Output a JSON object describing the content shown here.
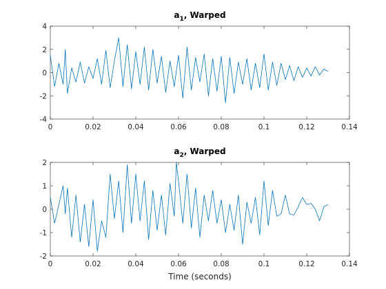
{
  "chart_data": [
    {
      "type": "line",
      "title_main": "a",
      "title_sub": "1",
      "title_rest": ", Warped",
      "xlabel": "",
      "ylabel": "",
      "xlim": [
        0,
        0.14
      ],
      "ylim": [
        -4,
        4
      ],
      "xticks": [
        0,
        0.02,
        0.04,
        0.06,
        0.08,
        0.1,
        0.12,
        0.14
      ],
      "xtick_labels": [
        "0",
        "0.02",
        "0.04",
        "0.06",
        "0.08",
        "0.1",
        "0.12",
        "0.14"
      ],
      "yticks": [
        -4,
        -2,
        0,
        2,
        4
      ],
      "ytick_labels": [
        "-4",
        "-2",
        "0",
        "2",
        "4"
      ],
      "grid": false,
      "series": [
        {
          "color": "#0072BD",
          "x": [
            0,
            0.002,
            0.004,
            0.006,
            0.007,
            0.008,
            0.01,
            0.012,
            0.014,
            0.016,
            0.018,
            0.02,
            0.022,
            0.024,
            0.026,
            0.028,
            0.03,
            0.032,
            0.034,
            0.036,
            0.038,
            0.04,
            0.042,
            0.044,
            0.046,
            0.048,
            0.05,
            0.052,
            0.054,
            0.056,
            0.058,
            0.06,
            0.062,
            0.064,
            0.066,
            0.068,
            0.07,
            0.072,
            0.074,
            0.076,
            0.078,
            0.08,
            0.082,
            0.084,
            0.086,
            0.088,
            0.09,
            0.092,
            0.094,
            0.096,
            0.098,
            0.1,
            0.102,
            0.104,
            0.106,
            0.108,
            0.11,
            0.112,
            0.114,
            0.116,
            0.118,
            0.12,
            0.122,
            0.124,
            0.126,
            0.128,
            0.13
          ],
          "y": [
            1.5,
            -1.2,
            0.8,
            -1.0,
            2.0,
            -1.8,
            0.4,
            -0.8,
            0.9,
            -0.9,
            0.5,
            -0.5,
            1.2,
            -1.0,
            1.9,
            -1.3,
            1.0,
            3.0,
            -1.2,
            2.4,
            -1.4,
            1.8,
            -1.0,
            2.2,
            -1.5,
            2.0,
            -0.9,
            1.4,
            -1.7,
            1.0,
            -1.2,
            1.5,
            -2.2,
            2.2,
            -1.5,
            1.3,
            -0.8,
            1.6,
            -2.0,
            1.2,
            -1.6,
            1.4,
            -2.6,
            1.3,
            -1.8,
            0.9,
            -1.0,
            1.2,
            -1.5,
            0.8,
            -1.3,
            1.6,
            -1.5,
            0.9,
            -1.1,
            0.8,
            -0.6,
            0.6,
            -0.7,
            0.5,
            -0.4,
            0.4,
            -0.3,
            0.5,
            -0.2,
            0.3,
            0.1
          ]
        }
      ]
    },
    {
      "type": "line",
      "title_main": "a",
      "title_sub": "2",
      "title_rest": ", Warped",
      "xlabel": "Time (seconds)",
      "ylabel": "",
      "xlim": [
        0,
        0.14
      ],
      "ylim": [
        -2,
        2
      ],
      "xticks": [
        0,
        0.02,
        0.04,
        0.06,
        0.08,
        0.1,
        0.12,
        0.14
      ],
      "xtick_labels": [
        "0",
        "0.02",
        "0.04",
        "0.06",
        "0.08",
        "0.1",
        "0.12",
        "0.14"
      ],
      "yticks": [
        -2,
        -1,
        0,
        1,
        2
      ],
      "ytick_labels": [
        "-2",
        "-1",
        "0",
        "1",
        "2"
      ],
      "grid": false,
      "series": [
        {
          "color": "#0072BD",
          "x": [
            0,
            0.002,
            0.004,
            0.006,
            0.007,
            0.008,
            0.01,
            0.012,
            0.014,
            0.016,
            0.018,
            0.02,
            0.022,
            0.024,
            0.026,
            0.028,
            0.03,
            0.032,
            0.034,
            0.036,
            0.038,
            0.04,
            0.042,
            0.044,
            0.046,
            0.048,
            0.05,
            0.052,
            0.054,
            0.056,
            0.058,
            0.059,
            0.06,
            0.062,
            0.064,
            0.066,
            0.068,
            0.07,
            0.072,
            0.074,
            0.076,
            0.078,
            0.08,
            0.082,
            0.084,
            0.086,
            0.088,
            0.09,
            0.092,
            0.094,
            0.096,
            0.098,
            0.1,
            0.102,
            0.104,
            0.106,
            0.108,
            0.11,
            0.112,
            0.114,
            0.116,
            0.118,
            0.12,
            0.122,
            0.124,
            0.126,
            0.128,
            0.13
          ],
          "y": [
            0.5,
            -0.6,
            0.2,
            1.0,
            -0.2,
            0.9,
            -1.2,
            0.6,
            -1.4,
            0.2,
            -1.6,
            0.4,
            -1.8,
            -0.5,
            -1.2,
            1.5,
            -0.4,
            1.2,
            -1.0,
            1.9,
            -0.6,
            1.5,
            -0.5,
            1.2,
            -1.3,
            0.8,
            -0.9,
            0.6,
            -1.1,
            1.1,
            -0.3,
            2.0,
            1.2,
            -0.6,
            1.5,
            -0.8,
            0.9,
            -1.2,
            0.6,
            -0.5,
            0.8,
            -0.6,
            0.4,
            -1.0,
            0.2,
            -0.9,
            0.6,
            -1.5,
            0.3,
            -0.6,
            0.5,
            -1.1,
            1.2,
            -0.7,
            0.8,
            -0.3,
            -0.2,
            0.6,
            -0.2,
            -0.25,
            0.1,
            0.5,
            0.2,
            0.25,
            0.0,
            -0.5,
            0.1,
            0.2
          ]
        }
      ]
    }
  ]
}
